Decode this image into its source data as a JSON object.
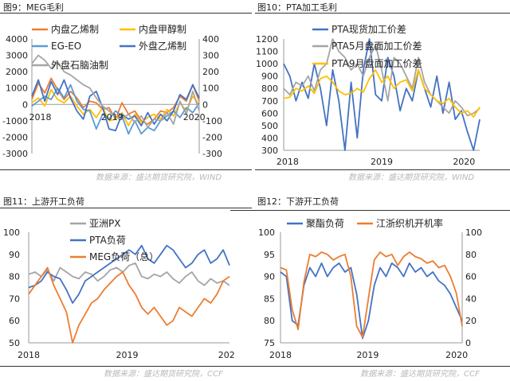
{
  "fig9": {
    "title": "图9：MEG毛利",
    "source": "数据来源：盛达期货研究院，WIND"
  },
  "fig10": {
    "title": "图10：PTA加工毛利",
    "source": "数据来源：盛达期货研究院，WIND"
  },
  "fig11": {
    "title": "图11：上游开工负荷",
    "source": "数据来源：盛达期货研究院，CCF"
  },
  "fig12": {
    "title": "图12：下游开工负荷",
    "source": "数据来源：盛达期货研究院，CCF"
  },
  "colors": {
    "orange": "#ED7D31",
    "yellow": "#FFC000",
    "lightblue": "#5B9BD5",
    "darkblue": "#4472C4",
    "gray": "#A5A5A5",
    "grid": "#d9d9d9"
  },
  "chart_data": [
    {
      "id": "meg",
      "type": "line",
      "title": "MEG毛利",
      "x_ticks": [
        "2018",
        "2019",
        "2020"
      ],
      "y_left": {
        "ticks": [
          "-3000",
          "-2000",
          "-1000",
          "0",
          "1000",
          "2000",
          "3000",
          "4000"
        ],
        "range": [
          -3000,
          4000
        ]
      },
      "y_right": {
        "ticks": [
          "-300",
          "-200",
          "-100",
          "0",
          "100",
          "200",
          "300",
          "400"
        ],
        "range": [
          -300,
          400
        ]
      },
      "series": [
        {
          "name": "内盘乙烯制",
          "color": "#ED7D31",
          "axis": "left",
          "values": [
            300,
            1300,
            700,
            1600,
            900,
            300,
            800,
            400,
            -200,
            200,
            100,
            -300,
            -200,
            -900,
            100,
            -600,
            -400,
            -1000,
            -1200,
            -900,
            -400,
            -500,
            -200,
            500,
            200,
            1200,
            200
          ]
        },
        {
          "name": "内盘甲醇制",
          "color": "#FFC000",
          "axis": "left",
          "values": [
            100,
            400,
            -100,
            900,
            300,
            100,
            500,
            -100,
            -600,
            -300,
            -800,
            -200,
            -1000,
            -900,
            -500,
            -1300,
            -600,
            -1100,
            -800,
            -600,
            -900,
            -300,
            -700,
            100,
            -400,
            500,
            0
          ]
        },
        {
          "name": "EG-EO",
          "color": "#5B9BD5",
          "axis": "left",
          "values": [
            -100,
            200,
            500,
            300,
            1000,
            400,
            1200,
            200,
            -300,
            -400,
            -1500,
            -600,
            -900,
            -400,
            -700,
            -1800,
            -1000,
            -1800,
            -1400,
            -1600,
            -1000,
            -700,
            -400,
            -800,
            -200,
            -500,
            100
          ]
        },
        {
          "name": "外盘乙烯制",
          "color": "#4472C4",
          "axis": "right",
          "values": [
            50,
            150,
            20,
            140,
            60,
            150,
            40,
            -40,
            -90,
            50,
            80,
            -20,
            -150,
            -160,
            -60,
            -90,
            -70,
            -130,
            -50,
            -120,
            -60,
            -100,
            -40,
            60,
            30,
            120,
            40
          ]
        },
        {
          "name": "外盘石脑油制",
          "color": "#A5A5A5",
          "axis": "right",
          "values": [
            250,
            300,
            270,
            220,
            260,
            200,
            180,
            150,
            120,
            100,
            40,
            -10,
            -40,
            -80,
            -90,
            -60,
            -110,
            -70,
            -140,
            -90,
            -100,
            -50,
            -120,
            20,
            -60,
            80,
            -40
          ]
        }
      ]
    },
    {
      "id": "pta",
      "type": "line",
      "title": "PTA加工毛利",
      "x_ticks": [
        "2018",
        "2019",
        "2020"
      ],
      "y_left": {
        "ticks": [
          "300",
          "400",
          "500",
          "600",
          "700",
          "800",
          "900",
          "1000",
          "1100",
          "1200"
        ],
        "range": [
          300,
          1200
        ]
      },
      "series": [
        {
          "name": "PTA现货加工价差",
          "color": "#4472C4",
          "values": [
            1000,
            900,
            700,
            850,
            720,
            1000,
            800,
            500,
            950,
            700,
            300,
            850,
            400,
            950,
            1200,
            750,
            700,
            1050,
            900,
            620,
            800,
            700,
            950,
            800,
            650,
            900,
            600,
            850,
            550,
            620,
            450,
            300,
            550
          ]
        },
        {
          "name": "PTA5月盘面加工价差",
          "color": "#A5A5A5",
          "values": [
            800,
            750,
            850,
            820,
            900,
            780,
            950,
            1000,
            1200,
            1100,
            1050,
            950,
            1000,
            900,
            1050,
            1150,
            950,
            700,
            1050,
            1000,
            900,
            800,
            1050,
            850,
            750,
            700,
            650,
            600,
            700,
            650,
            580,
            600,
            640
          ]
        },
        {
          "name": "PTA9月盘面加工价差",
          "color": "#FFC000",
          "values": [
            720,
            730,
            800,
            780,
            820,
            760,
            880,
            900,
            850,
            780,
            750,
            760,
            800,
            770,
            880,
            950,
            850,
            900,
            800,
            850,
            870,
            780,
            950,
            800,
            750,
            700,
            680,
            720,
            650,
            600,
            620,
            570,
            650
          ]
        }
      ]
    },
    {
      "id": "upstream",
      "type": "line",
      "title": "上游开工负荷",
      "x_ticks": [
        "2018",
        "2019",
        "202"
      ],
      "y_left": {
        "ticks": [
          "50",
          "60",
          "70",
          "80",
          "90",
          "100"
        ],
        "range": [
          50,
          100
        ]
      },
      "series": [
        {
          "name": "亚洲PX",
          "color": "#A5A5A5",
          "values": [
            81,
            82,
            80,
            83,
            78,
            84,
            82,
            80,
            79,
            82,
            81,
            78,
            80,
            83,
            84,
            82,
            85,
            86,
            80,
            79,
            81,
            80,
            82,
            79,
            77,
            80,
            82,
            78,
            76,
            79,
            77,
            78,
            76
          ]
        },
        {
          "name": "PTA负荷",
          "color": "#4472C4",
          "values": [
            75,
            76,
            78,
            82,
            80,
            79,
            74,
            68,
            72,
            78,
            80,
            82,
            84,
            86,
            88,
            90,
            92,
            90,
            94,
            88,
            86,
            90,
            94,
            92,
            88,
            84,
            86,
            90,
            92,
            86,
            88,
            92,
            85
          ]
        },
        {
          "name": "MEG负荷（总）",
          "color": "#ED7D31",
          "values": [
            72,
            76,
            80,
            84,
            76,
            70,
            64,
            50,
            58,
            63,
            68,
            70,
            74,
            77,
            80,
            82,
            76,
            72,
            66,
            63,
            66,
            62,
            58,
            60,
            66,
            64,
            62,
            66,
            70,
            68,
            72,
            78,
            80
          ]
        }
      ]
    },
    {
      "id": "downstream",
      "type": "line",
      "title": "下游开工负荷",
      "x_ticks": [
        "2018",
        "2019",
        "2020"
      ],
      "y_left": {
        "ticks": [
          "75",
          "80",
          "85",
          "90",
          "95",
          "100"
        ],
        "range": [
          75,
          100
        ]
      },
      "y_right": {
        "ticks": [
          "0",
          "20",
          "40",
          "60",
          "80",
          "100"
        ],
        "range": [
          0,
          100
        ]
      },
      "series": [
        {
          "name": "聚酯负荷",
          "color": "#4472C4",
          "axis": "left",
          "values": [
            91,
            90,
            80,
            79,
            88,
            92,
            90,
            93,
            90,
            92,
            93,
            91,
            92,
            86,
            76,
            80,
            88,
            92,
            90,
            93,
            92,
            90,
            93,
            91,
            92,
            90,
            91,
            89,
            88,
            86,
            83,
            80
          ]
        },
        {
          "name": "江浙织机开机率",
          "color": "#ED7D31",
          "axis": "right",
          "values": [
            68,
            66,
            30,
            12,
            55,
            80,
            78,
            82,
            80,
            75,
            78,
            80,
            60,
            15,
            5,
            40,
            75,
            82,
            78,
            80,
            70,
            78,
            82,
            78,
            76,
            72,
            74,
            68,
            70,
            60,
            45,
            15
          ]
        }
      ]
    }
  ]
}
